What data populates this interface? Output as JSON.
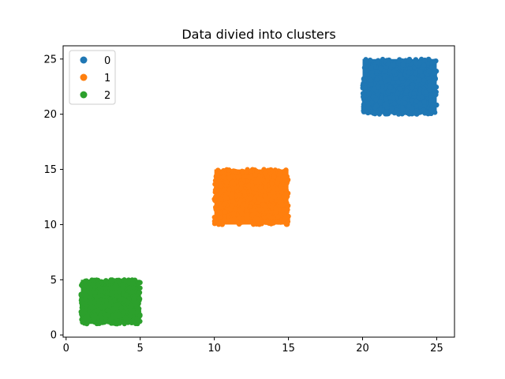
{
  "chart_data": {
    "type": "scatter",
    "title": "Data divied into clusters",
    "xlabel": "",
    "ylabel": "",
    "xlim": [
      -0.2,
      26.2
    ],
    "ylim": [
      -0.2,
      26.2
    ],
    "x_ticks": [
      0,
      5,
      10,
      15,
      20,
      25
    ],
    "y_ticks": [
      0,
      5,
      10,
      15,
      20,
      25
    ],
    "grid": false,
    "legend_position": "upper-left",
    "series": [
      {
        "name": "0",
        "color": "#1f77b4",
        "x_range": [
          20,
          25
        ],
        "y_range": [
          20,
          25
        ]
      },
      {
        "name": "1",
        "color": "#ff7f0e",
        "x_range": [
          10,
          15
        ],
        "y_range": [
          10,
          15
        ]
      },
      {
        "name": "2",
        "color": "#2ca02c",
        "x_range": [
          1,
          5
        ],
        "y_range": [
          1,
          5
        ]
      }
    ]
  }
}
